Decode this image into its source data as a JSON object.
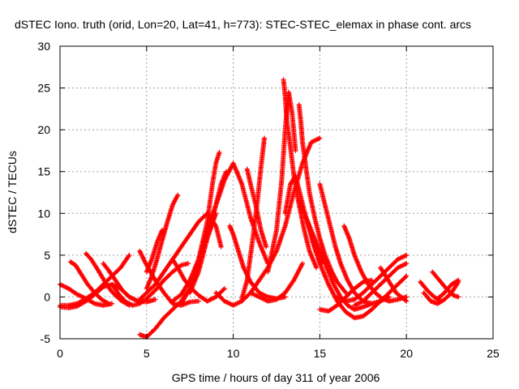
{
  "chart_data": {
    "type": "scatter",
    "title": "dSTEC Iono. truth (orid, Lon=20, Lat=41, h=773): STEC-STEC_elemax in phase cont. arcs",
    "xlabel": "GPS time / hours of day 311 of year 2006",
    "ylabel": "dSTEC  / TECUs",
    "xlim": [
      0,
      25
    ],
    "ylim": [
      -5,
      30
    ],
    "xticks": [
      "0",
      "5",
      "10",
      "15",
      "20",
      "25"
    ],
    "yticks": [
      "-5",
      "0",
      "5",
      "10",
      "15",
      "20",
      "25",
      "30"
    ],
    "grid": true,
    "marker": "+",
    "color": "#ff0000",
    "series": [
      {
        "x": [
          0.0,
          0.5,
          1.0,
          1.5,
          2.0,
          2.5,
          3.0
        ],
        "y": [
          1.5,
          1.0,
          0.3,
          -0.2,
          -0.8,
          -1.0,
          -0.8
        ]
      },
      {
        "x": [
          0.0,
          0.5,
          1.0,
          1.5,
          2.0,
          2.5,
          3.0,
          3.5,
          4.0
        ],
        "y": [
          -1.0,
          -1.0,
          -0.8,
          -0.2,
          0.5,
          1.5,
          2.5,
          3.5,
          5.0
        ]
      },
      {
        "x": [
          0.0,
          0.5,
          1.0,
          1.5,
          2.0,
          2.5,
          3.0,
          3.5,
          4.0,
          4.5,
          4.7
        ],
        "y": [
          -1.2,
          -1.3,
          -1.1,
          -0.5,
          0.3,
          1.2,
          1.5,
          1.0,
          0.0,
          -0.5,
          -0.6
        ]
      },
      {
        "x": [
          0.6,
          0.9,
          1.2,
          1.6,
          2.0,
          2.4,
          2.8
        ],
        "y": [
          4.2,
          3.8,
          2.8,
          1.5,
          0.5,
          -0.3,
          -0.8
        ]
      },
      {
        "x": [
          1.5,
          1.8,
          2.2,
          2.6,
          3.0,
          3.5,
          4.0
        ],
        "y": [
          5.2,
          4.5,
          3.2,
          1.8,
          0.6,
          -0.4,
          -1.0
        ]
      },
      {
        "x": [
          2.5,
          2.8,
          3.2,
          3.6,
          4.0,
          4.5,
          5.0,
          5.5
        ],
        "y": [
          4.0,
          3.2,
          2.0,
          0.8,
          0.0,
          -0.5,
          -0.6,
          -0.3
        ]
      },
      {
        "x": [
          3.0,
          3.4,
          3.8,
          4.2,
          4.6,
          5.0,
          5.5,
          6.0,
          6.5,
          7.0,
          7.4
        ],
        "y": [
          1.5,
          0.3,
          -0.6,
          -1.0,
          -0.8,
          -0.2,
          0.8,
          2.0,
          3.0,
          3.8,
          4.0
        ]
      },
      {
        "x": [
          4.6,
          5.0,
          5.5,
          6.0,
          6.5,
          7.0,
          7.5,
          8.0
        ],
        "y": [
          5.5,
          3.8,
          2.0,
          0.5,
          -0.8,
          -1.0,
          -0.6,
          -0.5
        ]
      },
      {
        "x": [
          4.5,
          5.0,
          5.5,
          6.0,
          6.5,
          7.0,
          7.5,
          8.0,
          8.5,
          9.0,
          9.3
        ],
        "y": [
          -0.5,
          0.5,
          1.5,
          3.0,
          4.5,
          6.0,
          7.5,
          9.0,
          10.0,
          8.5,
          6.0
        ]
      },
      {
        "x": [
          5.0,
          5.3,
          5.6,
          5.9,
          6.2,
          6.5,
          6.8
        ],
        "y": [
          1.0,
          2.5,
          4.5,
          6.8,
          9.0,
          11.0,
          12.2
        ]
      },
      {
        "x": [
          4.6,
          5.0,
          5.5,
          6.0,
          6.5,
          7.0,
          7.5,
          8.0,
          8.5,
          9.0
        ],
        "y": [
          -4.5,
          -4.8,
          -3.8,
          -2.5,
          -1.5,
          -0.5,
          1.0,
          3.5,
          7.0,
          10.0
        ]
      },
      {
        "x": [
          5.0,
          5.3,
          5.6,
          5.9
        ],
        "y": [
          3.0,
          4.5,
          6.5,
          8.0
        ]
      },
      {
        "x": [
          6.5,
          6.8,
          7.2,
          7.6,
          8.0,
          8.5,
          9.0,
          9.5
        ],
        "y": [
          4.5,
          3.5,
          2.0,
          1.0,
          0.2,
          -0.5,
          0.0,
          1.0
        ]
      },
      {
        "x": [
          6.5,
          7.0,
          7.5,
          8.0,
          8.5,
          9.0,
          9.5,
          10.0,
          10.5,
          11.0,
          11.5,
          12.0
        ],
        "y": [
          -0.5,
          0.3,
          2.0,
          4.5,
          8.0,
          11.0,
          14.0,
          16.0,
          13.5,
          9.5,
          6.5,
          4.0
        ]
      },
      {
        "x": [
          7.0,
          7.5,
          8.0,
          8.5,
          8.8,
          9.0,
          9.2
        ],
        "y": [
          -0.8,
          1.0,
          4.5,
          9.0,
          13.5,
          16.0,
          17.3
        ]
      },
      {
        "x": [
          7.5,
          8.0,
          8.5,
          9.0,
          9.3,
          9.6
        ],
        "y": [
          0.5,
          3.0,
          7.0,
          11.0,
          13.5,
          15.0
        ]
      },
      {
        "x": [
          9.0,
          9.5,
          10.0,
          10.5,
          11.0,
          11.5,
          12.0,
          12.5,
          13.0,
          13.5,
          14.0,
          14.5,
          15.0
        ],
        "y": [
          0.5,
          -0.5,
          -1.0,
          -0.5,
          0.5,
          2.0,
          3.5,
          5.5,
          8.5,
          12.5,
          16.0,
          18.5,
          19.0
        ]
      },
      {
        "x": [
          9.8,
          10.0,
          10.3,
          10.6,
          11.0,
          11.5,
          12.0,
          12.5,
          13.0
        ],
        "y": [
          8.5,
          7.5,
          5.5,
          3.5,
          1.8,
          0.5,
          0.0,
          -0.2,
          0.0
        ]
      },
      {
        "x": [
          10.8,
          11.0,
          11.3,
          11.6,
          11.9
        ],
        "y": [
          15.3,
          13.5,
          11.0,
          8.0,
          6.0
        ]
      },
      {
        "x": [
          10.5,
          10.8,
          11.1,
          11.4,
          11.6,
          11.8
        ],
        "y": [
          -0.2,
          2.0,
          6.5,
          11.5,
          15.5,
          19.0
        ]
      },
      {
        "x": [
          11.0,
          11.5,
          12.0,
          12.5,
          13.0,
          13.5,
          14.0
        ],
        "y": [
          0.5,
          0.0,
          -0.5,
          -0.3,
          0.5,
          2.0,
          4.0
        ]
      },
      {
        "x": [
          12.0,
          12.5,
          12.8,
          13.0,
          13.2,
          13.4,
          13.6
        ],
        "y": [
          3.0,
          8.0,
          14.0,
          20.0,
          24.5,
          22.0,
          17.5
        ]
      },
      {
        "x": [
          12.9,
          13.0,
          13.1,
          13.3,
          13.5,
          13.8,
          14.1,
          14.4,
          14.8
        ],
        "y": [
          26.0,
          24.0,
          21.0,
          18.0,
          14.5,
          11.0,
          8.0,
          5.5,
          3.5
        ]
      },
      {
        "x": [
          13.0,
          13.3,
          13.6,
          13.9,
          14.2,
          14.5,
          14.8,
          15.1
        ],
        "y": [
          10.0,
          13.5,
          14.5,
          12.0,
          9.5,
          7.5,
          5.5,
          4.0
        ]
      },
      {
        "x": [
          13.8,
          13.9,
          14.0,
          14.2,
          14.4,
          14.7,
          15.0,
          15.3,
          15.7,
          16.0,
          16.5
        ],
        "y": [
          23.0,
          21.0,
          18.5,
          15.5,
          12.5,
          9.5,
          7.0,
          5.0,
          3.0,
          1.8,
          0.5
        ]
      },
      {
        "x": [
          13.8,
          14.1,
          14.4,
          14.7,
          15.0,
          15.4,
          15.8,
          16.2,
          16.6,
          17.0,
          17.5,
          18.0
        ],
        "y": [
          11.5,
          10.0,
          8.5,
          7.0,
          5.5,
          3.5,
          1.5,
          0.0,
          -1.0,
          -1.5,
          -1.2,
          -0.8
        ]
      },
      {
        "x": [
          14.3,
          14.6,
          15.0,
          15.5,
          16.0,
          16.5,
          17.0,
          17.5,
          18.0,
          18.5,
          19.0,
          19.5,
          20.0
        ],
        "y": [
          9.0,
          6.5,
          4.0,
          1.5,
          -0.5,
          -1.8,
          -2.5,
          -2.3,
          -1.5,
          -0.5,
          0.5,
          1.5,
          2.5
        ]
      },
      {
        "x": [
          15.0,
          15.3,
          15.6,
          15.9,
          16.2,
          16.6,
          17.0,
          17.5,
          18.0,
          18.5,
          19.0
        ],
        "y": [
          13.5,
          11.0,
          8.5,
          6.0,
          4.0,
          2.0,
          0.5,
          -0.5,
          -0.8,
          -0.5,
          0.0
        ]
      },
      {
        "x": [
          15.0,
          15.5,
          16.0,
          16.5,
          17.0,
          17.5,
          18.0
        ],
        "y": [
          -1.5,
          -1.7,
          -1.0,
          0.0,
          1.0,
          1.8,
          2.0
        ]
      },
      {
        "x": [
          16.4,
          16.7,
          17.0,
          17.4,
          17.8,
          18.2,
          18.6,
          19.0,
          19.5,
          20.0
        ],
        "y": [
          8.5,
          7.0,
          5.0,
          3.0,
          1.5,
          0.5,
          -0.2,
          -0.5,
          -0.3,
          0.0
        ]
      },
      {
        "x": [
          16.0,
          16.5,
          17.0,
          17.5,
          18.0,
          18.5,
          19.0,
          19.5,
          20.0
        ],
        "y": [
          0.0,
          -0.5,
          -0.3,
          0.5,
          1.5,
          2.5,
          3.5,
          4.5,
          5.0
        ]
      },
      {
        "x": [
          17.0,
          17.5,
          18.0,
          18.5,
          19.0,
          19.5,
          20.0
        ],
        "y": [
          -1.0,
          -0.5,
          0.5,
          1.5,
          2.5,
          3.5,
          4.0
        ]
      },
      {
        "x": [
          18.5,
          18.8,
          19.1,
          19.4,
          19.7,
          20.0
        ],
        "y": [
          3.5,
          2.5,
          1.5,
          0.5,
          0.0,
          -0.5
        ]
      },
      {
        "x": [
          20.8,
          21.2,
          21.6,
          22.0
        ],
        "y": [
          1.8,
          0.8,
          0.0,
          -0.5
        ]
      },
      {
        "x": [
          21.0,
          21.4,
          21.8,
          22.2,
          22.6,
          23.0
        ],
        "y": [
          0.5,
          -0.5,
          -0.8,
          -0.3,
          0.5,
          1.8
        ]
      },
      {
        "x": [
          21.5,
          21.9,
          22.3,
          22.7,
          23.0
        ],
        "y": [
          3.0,
          2.0,
          1.0,
          0.2,
          0.0
        ]
      },
      {
        "x": [
          21.8,
          22.2,
          22.6,
          23.0
        ],
        "y": [
          -0.2,
          0.5,
          1.5,
          2.0
        ]
      }
    ]
  }
}
